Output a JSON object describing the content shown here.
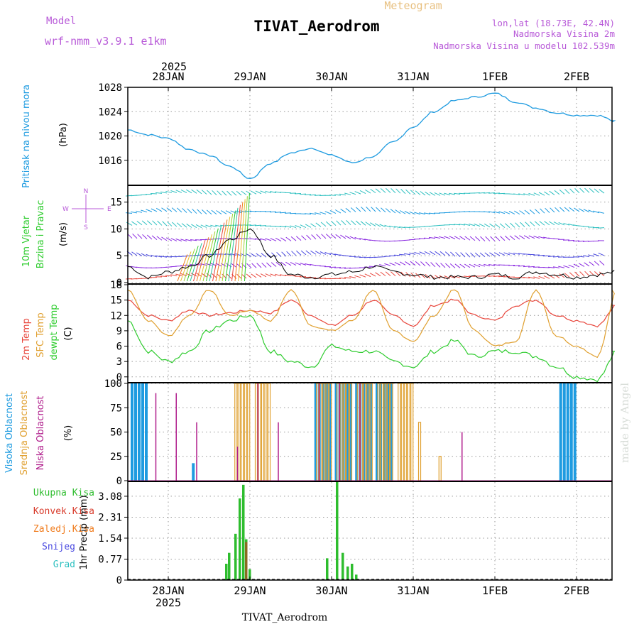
{
  "header": {
    "model_label": "Model",
    "model_name": "wrf-nmm_v3.9.1  e1km",
    "product": "Meteogram",
    "station": "TIVAT_Aerodrom",
    "lonlat": "lon,lat (18.73E, 42.4N)",
    "elev": "Nadmorska Visina 2m",
    "elev_model": "Nadmorska Visina u modelu 102.539m",
    "footer_station": "TIVAT_Aerodrom",
    "watermark": "made by Angel"
  },
  "colors": {
    "pressure": "#1e9be0",
    "temp2m": "#e8463c",
    "sfc": "#e0a030",
    "dewpt": "#2ecc2e",
    "high": "#1e9be0",
    "mid": "#e0a030",
    "low": "#b01e8c",
    "total": "#2ebd2e",
    "conv": "#d83a2a",
    "frozen": "#f07c1e",
    "snow": "#4a4ae0",
    "hail": "#2ec0c0",
    "purple": "#b85ad8"
  },
  "axis": {
    "year_top": "2025",
    "year_bottom": "2025",
    "dates": [
      "28JAN",
      "29JAN",
      "30JAN",
      "31JAN",
      "1FEB",
      "2FEB"
    ]
  },
  "panels": {
    "pressure": {
      "label1": "Pritisak na nivou mora",
      "unit": "(hPa)",
      "ticks": [
        "1016",
        "1020",
        "1024",
        "1028"
      ]
    },
    "wind": {
      "label1": "10m Vjetar",
      "label2": "Brzina i Pravac",
      "unit": "(m/s)",
      "ticks": [
        "0",
        "5",
        "10",
        "15"
      ],
      "compass_n": "N",
      "compass_w": "W",
      "compass_e": "E",
      "compass_s": "S"
    },
    "temp": {
      "label1": "2m Temp",
      "label2": "SFC Temp",
      "label3": "dewpt Temp",
      "unit": "(C)",
      "ticks": [
        "0",
        "3",
        "6",
        "9",
        "12",
        "15",
        "18"
      ]
    },
    "cloud": {
      "label1": "Visoka Oblacnost",
      "label2": "Srednja Oblacnost",
      "label3": "Niska Oblacnost",
      "unit": "(%)",
      "ticks": [
        "0",
        "25",
        "50",
        "75",
        "100"
      ]
    },
    "precip": {
      "legend": [
        "Ukupna Kisa",
        "Konvek.Kisa",
        "Zaledj.Kisa",
        "Snijeg",
        "Grad"
      ],
      "unit": "1hr Precip (mm)",
      "ticks": [
        "0",
        "0.77",
        "1.54",
        "2.31",
        "3.08"
      ]
    }
  },
  "chart_data": [
    {
      "type": "line",
      "ylabel": "Pritisak na nivou mora (hPa)",
      "x": [
        "27JAN 12",
        "27JAN 18",
        "28JAN 00",
        "28JAN 06",
        "28JAN 12",
        "28JAN 18",
        "29JAN 00",
        "29JAN 06",
        "29JAN 12",
        "29JAN 18",
        "30JAN 00",
        "30JAN 06",
        "30JAN 12",
        "30JAN 18",
        "31JAN 00",
        "31JAN 06",
        "31JAN 12",
        "31JAN 18",
        "1FEB 00",
        "1FEB 06",
        "1FEB 12",
        "1FEB 18",
        "2FEB 00",
        "2FEB 06",
        "2FEB 12"
      ],
      "series": [
        {
          "values": [
            1021.0,
            1020.2,
            1019.6,
            1017.8,
            1016.8,
            1015.0,
            1013.0,
            1015.5,
            1017.2,
            1018.0,
            1016.8,
            1015.6,
            1016.6,
            1019.0,
            1021.5,
            1024.0,
            1025.8,
            1026.4,
            1027.0,
            1025.6,
            1024.6,
            1023.8,
            1023.4,
            1023.4,
            1022.3
          ]
        }
      ],
      "ylim": [
        1012,
        1028
      ]
    },
    {
      "type": "line",
      "ylabel": "10m Vjetar Brzina i Pravac (m/s)",
      "x": [
        "27JAN 12",
        "27JAN 18",
        "28JAN 00",
        "28JAN 06",
        "28JAN 12",
        "28JAN 18",
        "29JAN 00",
        "29JAN 06",
        "29JAN 12",
        "29JAN 18",
        "30JAN 00",
        "30JAN 06",
        "30JAN 12",
        "30JAN 18",
        "31JAN 00",
        "31JAN 06",
        "31JAN 12",
        "31JAN 18",
        "1FEB 00",
        "1FEB 06",
        "1FEB 12",
        "1FEB 18",
        "2FEB 00",
        "2FEB 06",
        "2FEB 12"
      ],
      "series": [
        {
          "values": [
            3,
            1,
            2,
            3,
            5,
            8,
            10,
            5,
            1.5,
            1,
            1.5,
            2,
            3,
            2,
            1.5,
            1,
            1,
            1,
            1.5,
            1,
            2,
            1.5,
            1,
            1.5,
            2
          ]
        }
      ],
      "ylim": [
        0,
        18
      ]
    },
    {
      "type": "line",
      "ylabel": "(C)",
      "x": [
        "27JAN 12",
        "27JAN 18",
        "28JAN 00",
        "28JAN 06",
        "28JAN 12",
        "28JAN 18",
        "29JAN 00",
        "29JAN 06",
        "29JAN 12",
        "29JAN 18",
        "30JAN 00",
        "30JAN 06",
        "30JAN 12",
        "30JAN 18",
        "31JAN 00",
        "31JAN 06",
        "31JAN 12",
        "31JAN 18",
        "1FEB 00",
        "1FEB 06",
        "1FEB 12",
        "1FEB 18",
        "2FEB 00",
        "2FEB 06",
        "2FEB 12"
      ],
      "series": [
        {
          "name": "2m Temp",
          "values": [
            15.0,
            12.0,
            11.0,
            13.0,
            12.0,
            12.5,
            13.0,
            12.5,
            15.0,
            12.0,
            10.0,
            12.0,
            15.0,
            12.0,
            10.0,
            14.0,
            15.0,
            12.0,
            11.0,
            14.0,
            15.0,
            12.0,
            11.0,
            10.0,
            14.0
          ]
        },
        {
          "name": "SFC Temp",
          "values": [
            17.0,
            11.0,
            8.0,
            12.0,
            17.0,
            12.0,
            13.0,
            11.0,
            17.0,
            10.0,
            9.0,
            11.0,
            17.0,
            9.0,
            7.0,
            12.0,
            17.0,
            9.0,
            6.0,
            7.0,
            17.0,
            8.0,
            6.0,
            4.0,
            17.0
          ]
        },
        {
          "name": "dewpt Temp",
          "values": [
            11.0,
            5.0,
            3.0,
            5.0,
            9.0,
            11.0,
            12.0,
            5.0,
            3.0,
            2.0,
            6.0,
            5.0,
            5.0,
            3.0,
            2.0,
            5.0,
            7.0,
            4.0,
            5.0,
            5.0,
            4.0,
            2.0,
            0.0,
            -0.5,
            5.0
          ]
        }
      ],
      "ylim": [
        -1,
        18
      ]
    },
    {
      "type": "bar",
      "ylabel": "(%)",
      "x": [
        "27JAN 12",
        "27JAN 18",
        "28JAN 00",
        "28JAN 06",
        "28JAN 12",
        "28JAN 18",
        "29JAN 00",
        "29JAN 06",
        "29JAN 12",
        "29JAN 18",
        "30JAN 00",
        "30JAN 06",
        "30JAN 12",
        "30JAN 18",
        "31JAN 00",
        "31JAN 06",
        "31JAN 12",
        "31JAN 18",
        "1FEB 00",
        "1FEB 06",
        "1FEB 12",
        "1FEB 18",
        "2FEB 00",
        "2FEB 06",
        "2FEB 12"
      ],
      "series": [
        {
          "name": "Visoka Oblacnost",
          "values": [
            100,
            0,
            0,
            18,
            0,
            0,
            0,
            0,
            0,
            100,
            100,
            100,
            100,
            0,
            0,
            0,
            0,
            0,
            0,
            0,
            0,
            100,
            0,
            0,
            0
          ]
        },
        {
          "name": "Srednja Oblacnost",
          "values": [
            0,
            0,
            0,
            0,
            0,
            100,
            100,
            0,
            0,
            100,
            100,
            100,
            100,
            100,
            60,
            25,
            0,
            0,
            0,
            0,
            0,
            0,
            0,
            0,
            0
          ]
        },
        {
          "name": "Niska Oblacnost",
          "values": [
            0,
            90,
            90,
            60,
            0,
            35,
            100,
            60,
            0,
            100,
            100,
            100,
            0,
            0,
            0,
            0,
            50,
            0,
            0,
            0,
            0,
            0,
            0,
            0,
            0
          ]
        }
      ],
      "ylim": [
        0,
        100
      ]
    },
    {
      "type": "bar",
      "ylabel": "1hr Precip (mm)",
      "x": [
        "29JAN 00 -5h",
        "29JAN 00 -4h",
        "29JAN 00 -3h",
        "29JAN 00 -2h",
        "29JAN 00 -1h",
        "29JAN 00",
        "29JAN 00 +1h",
        "30JAN 00 -1h",
        "30JAN 00",
        "30JAN 00 +1h",
        "30JAN 00 +2h",
        "30JAN 00 +3h",
        "30JAN 00 +4h"
      ],
      "series": [
        {
          "name": "Ukupna Kisa",
          "values": [
            0.6,
            1.0,
            1.7,
            3.0,
            3.5,
            1.5,
            0.4,
            0.8,
            3.6,
            1.0,
            0.5,
            0.6,
            0.2
          ]
        },
        {
          "name": "Konvek.Kisa",
          "values": [
            0,
            0,
            0,
            0,
            0,
            1.4,
            0,
            0,
            0,
            0,
            0,
            0,
            0
          ]
        }
      ],
      "ylim": [
        0,
        3.6
      ]
    }
  ]
}
